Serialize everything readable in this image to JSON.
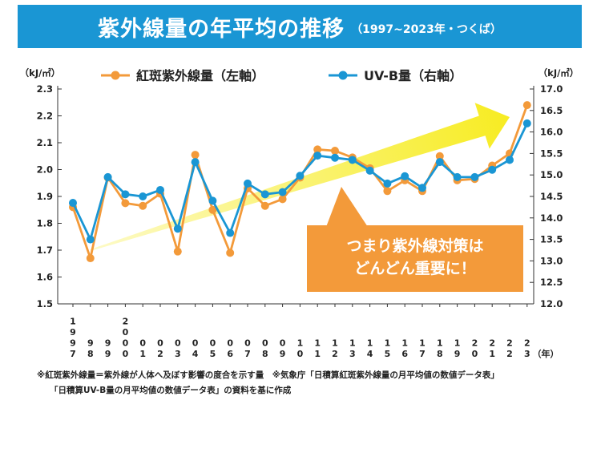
{
  "header": {
    "title": "紫外線量の年平均の推移",
    "subtitle": "（1997~2023年・つくば）"
  },
  "chart_data": {
    "type": "line",
    "x": [
      "1997",
      "1998",
      "1999",
      "2000",
      "2001",
      "2002",
      "2003",
      "2004",
      "2005",
      "2006",
      "2007",
      "2008",
      "2009",
      "2010",
      "2011",
      "2012",
      "2013",
      "2014",
      "2015",
      "2016",
      "2017",
      "2018",
      "2019",
      "2020",
      "2021",
      "2022",
      "2023"
    ],
    "x_tick_labels": [
      [
        "1",
        "9",
        "9",
        "7"
      ],
      [
        "9",
        "8"
      ],
      [
        "9",
        "9"
      ],
      [
        "2",
        "0",
        "0",
        "0"
      ],
      [
        "0",
        "1"
      ],
      [
        "0",
        "2"
      ],
      [
        "0",
        "3"
      ],
      [
        "0",
        "4"
      ],
      [
        "0",
        "5"
      ],
      [
        "0",
        "6"
      ],
      [
        "0",
        "7"
      ],
      [
        "0",
        "8"
      ],
      [
        "0",
        "9"
      ],
      [
        "1",
        "0"
      ],
      [
        "1",
        "1"
      ],
      [
        "1",
        "2"
      ],
      [
        "1",
        "3"
      ],
      [
        "1",
        "4"
      ],
      [
        "1",
        "5"
      ],
      [
        "1",
        "6"
      ],
      [
        "1",
        "7"
      ],
      [
        "1",
        "8"
      ],
      [
        "1",
        "9"
      ],
      [
        "2",
        "0"
      ],
      [
        "2",
        "1"
      ],
      [
        "2",
        "2"
      ],
      [
        "2",
        "3"
      ]
    ],
    "x_unit": "（年）",
    "series": [
      {
        "name": "紅斑紫外線量（左軸）",
        "axis": "left",
        "color": "#f39a3a",
        "values": [
          1.86,
          1.67,
          1.97,
          1.875,
          1.865,
          1.91,
          1.695,
          2.055,
          1.85,
          1.69,
          1.93,
          1.865,
          1.89,
          1.97,
          2.075,
          2.07,
          2.045,
          2.005,
          1.92,
          1.96,
          1.92,
          2.05,
          1.96,
          1.965,
          2.015,
          2.06,
          2.24
        ]
      },
      {
        "name": "UV-B量（右軸）",
        "axis": "right",
        "color": "#1a96d4",
        "values": [
          14.35,
          13.5,
          14.95,
          14.55,
          14.5,
          14.65,
          13.75,
          15.3,
          14.4,
          13.65,
          14.8,
          14.55,
          14.6,
          14.98,
          15.45,
          15.4,
          15.35,
          15.1,
          14.8,
          14.97,
          14.7,
          15.3,
          14.95,
          14.95,
          15.12,
          15.35,
          16.2
        ]
      }
    ],
    "y_left": {
      "unit": "（kJ/㎡）",
      "min": 1.5,
      "max": 2.3,
      "ticks": [
        "1.5",
        "1.6",
        "1.7",
        "1.8",
        "1.9",
        "2.0",
        "2.1",
        "2.2",
        "2.3"
      ]
    },
    "y_right": {
      "unit": "（kJ/㎡）",
      "min": 12.0,
      "max": 17.0,
      "ticks": [
        "12.0",
        "12.5",
        "13.0",
        "13.5",
        "14.0",
        "14.5",
        "15.0",
        "15.5",
        "16.0",
        "16.5",
        "17.0"
      ]
    },
    "legend_position": "top",
    "grid": false,
    "trend_arrow_color": "#f7ec22",
    "callout": {
      "lines": [
        "つまり紫外線対策は",
        "どんどん重要に！"
      ],
      "color": "#f39a3a"
    }
  },
  "footnotes": {
    "line1": "※紅斑紫外線量＝紫外線が人体へ及ぼす影響の度合を示す量　※気象庁「日積算紅斑紫外線量の月平均値の数値データ表」",
    "line2": "「日積算UV-B量の月平均値の数値データ表」の資料を基に作成"
  }
}
